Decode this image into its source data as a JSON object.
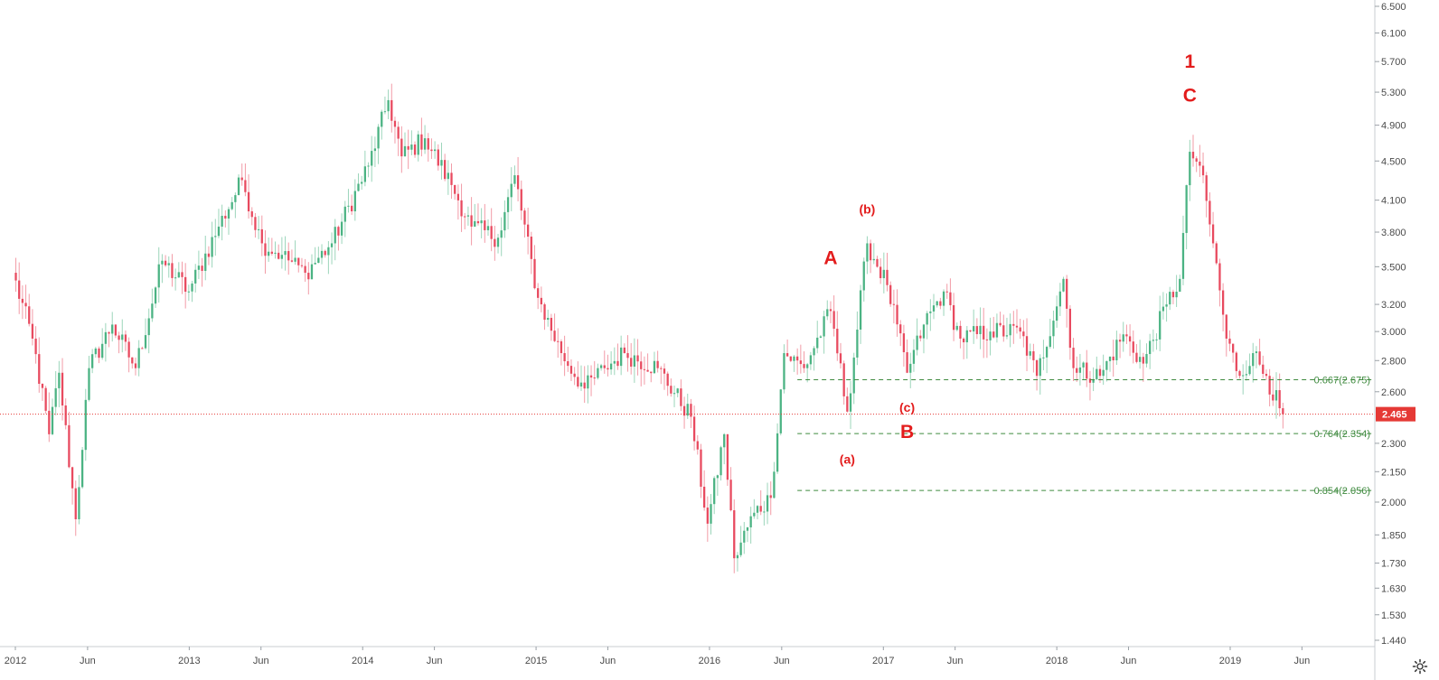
{
  "chart_data": {
    "type": "candlestick",
    "y_axis_ticks": [
      "6.500",
      "6.100",
      "5.700",
      "5.300",
      "4.900",
      "4.500",
      "4.100",
      "3.800",
      "3.500",
      "3.200",
      "3.000",
      "2.800",
      "2.600",
      "2.300",
      "2.150",
      "2.000",
      "1.850",
      "1.730",
      "1.630",
      "1.530",
      "1.440"
    ],
    "x_axis_ticks": [
      "2012",
      "Jun",
      "2013",
      "Jun",
      "2014",
      "Jun",
      "2015",
      "Jun",
      "2016",
      "Jun",
      "2017",
      "Jun",
      "2018",
      "Jun",
      "2019",
      "Jun"
    ],
    "x_tick_dates": [
      "2012-01-01",
      "2012-06-01",
      "2013-01-01",
      "2013-06-01",
      "2014-01-01",
      "2014-06-01",
      "2015-01-01",
      "2015-06-01",
      "2016-01-01",
      "2016-06-01",
      "2017-01-01",
      "2017-06-01",
      "2018-01-01",
      "2018-06-01",
      "2019-01-01",
      "2019-06-01"
    ],
    "last_price": "2.465",
    "up_color": "#4bb383",
    "down_color": "#e84a5f",
    "price_line_color": "#e53935",
    "fib_color": "#3f8a3f",
    "label_color": "#e31c1c",
    "fib_levels": [
      {
        "ratio": "0.667",
        "price": 2.675,
        "label": "0.667(2.675)"
      },
      {
        "ratio": "0.764",
        "price": 2.354,
        "label": "0.764(2.354)"
      },
      {
        "ratio": "0.854",
        "price": 2.056,
        "label": "0.854(2.056)"
      }
    ],
    "wave_labels": [
      {
        "text": "A",
        "date": "2016-09-12",
        "price": 3.52,
        "size": "big"
      },
      {
        "text": "(b)",
        "date": "2016-11-28",
        "price": 3.97,
        "size": "small"
      },
      {
        "text": "(a)",
        "date": "2016-10-17",
        "price": 2.19,
        "size": "small"
      },
      {
        "text": "(c)",
        "date": "2017-02-20",
        "price": 2.48,
        "size": "small"
      },
      {
        "text": "B",
        "date": "2017-02-20",
        "price": 2.33,
        "size": "big"
      },
      {
        "text": "1",
        "date": "2018-10-08",
        "price": 5.62,
        "size": "big"
      },
      {
        "text": "C",
        "date": "2018-10-08",
        "price": 5.18,
        "size": "big"
      }
    ],
    "path_knots": [
      [
        "2011-12-26",
        3.45
      ],
      [
        "2012-02-06",
        2.95
      ],
      [
        "2012-03-12",
        2.35
      ],
      [
        "2012-04-02",
        2.72
      ],
      [
        "2012-05-07",
        1.92
      ],
      [
        "2012-06-04",
        2.75
      ],
      [
        "2012-07-23",
        3.05
      ],
      [
        "2012-09-10",
        2.75
      ],
      [
        "2012-11-05",
        3.55
      ],
      [
        "2012-12-31",
        3.3
      ],
      [
        "2013-03-04",
        3.85
      ],
      [
        "2013-04-22",
        4.3
      ],
      [
        "2013-06-03",
        3.7
      ],
      [
        "2013-07-15",
        3.6
      ],
      [
        "2013-09-02",
        3.45
      ],
      [
        "2013-10-28",
        3.7
      ],
      [
        "2014-01-13",
        4.45
      ],
      [
        "2014-02-24",
        5.2
      ],
      [
        "2014-03-24",
        4.55
      ],
      [
        "2014-05-12",
        4.75
      ],
      [
        "2014-07-07",
        4.25
      ],
      [
        "2014-08-18",
        3.85
      ],
      [
        "2014-10-13",
        3.75
      ],
      [
        "2014-11-17",
        4.35
      ],
      [
        "2015-01-05",
        3.25
      ],
      [
        "2015-02-23",
        2.85
      ],
      [
        "2015-04-13",
        2.62
      ],
      [
        "2015-05-25",
        2.75
      ],
      [
        "2015-07-06",
        2.85
      ],
      [
        "2015-09-14",
        2.75
      ],
      [
        "2015-11-23",
        2.45
      ],
      [
        "2015-12-28",
        1.9
      ],
      [
        "2016-02-01",
        2.35
      ],
      [
        "2016-02-22",
        1.75
      ],
      [
        "2016-04-04",
        1.95
      ],
      [
        "2016-05-09",
        2.02
      ],
      [
        "2016-06-06",
        2.85
      ],
      [
        "2016-07-18",
        2.75
      ],
      [
        "2016-09-12",
        3.15
      ],
      [
        "2016-10-17",
        2.48
      ],
      [
        "2016-11-28",
        3.7
      ],
      [
        "2017-01-09",
        3.35
      ],
      [
        "2017-02-20",
        2.72
      ],
      [
        "2017-03-27",
        3.05
      ],
      [
        "2017-05-08",
        3.3
      ],
      [
        "2017-06-12",
        2.95
      ],
      [
        "2017-08-14",
        3.0
      ],
      [
        "2017-10-16",
        3.0
      ],
      [
        "2017-11-20",
        2.7
      ],
      [
        "2018-01-15",
        3.4
      ],
      [
        "2018-02-05",
        2.75
      ],
      [
        "2018-04-02",
        2.7
      ],
      [
        "2018-05-21",
        2.98
      ],
      [
        "2018-07-02",
        2.78
      ],
      [
        "2018-08-20",
        3.2
      ],
      [
        "2018-09-17",
        3.4
      ],
      [
        "2018-10-08",
        4.6
      ],
      [
        "2018-10-29",
        4.45
      ],
      [
        "2018-11-26",
        3.7
      ],
      [
        "2018-12-24",
        2.95
      ],
      [
        "2019-01-21",
        2.7
      ],
      [
        "2019-02-18",
        2.85
      ],
      [
        "2019-03-18",
        2.7
      ],
      [
        "2019-04-15",
        2.5
      ],
      [
        "2019-04-22",
        2.465
      ]
    ]
  }
}
